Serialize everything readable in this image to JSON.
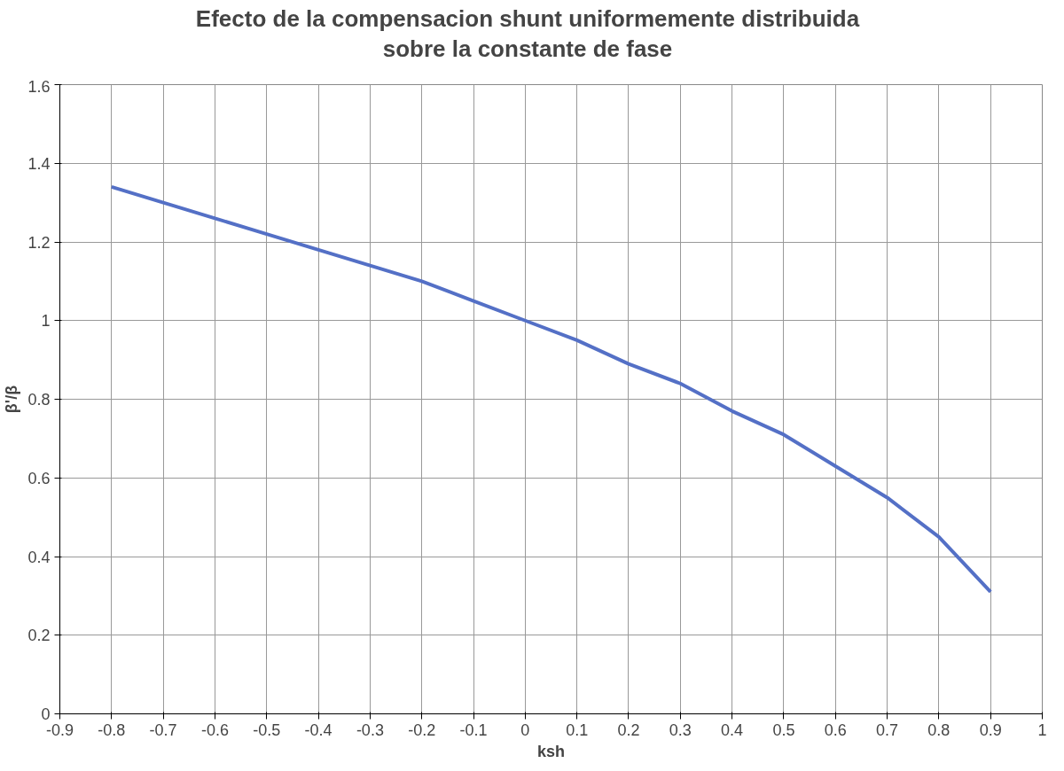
{
  "chart_data": {
    "type": "line",
    "title": "Efecto de la compensacion shunt uniformemente distribuida sobre la constante de fase",
    "xlabel": "ksh",
    "ylabel": "β'/β",
    "x": [
      -0.8,
      -0.7,
      -0.6,
      -0.5,
      -0.4,
      -0.3,
      -0.2,
      -0.1,
      0,
      0.1,
      0.2,
      0.3,
      0.4,
      0.5,
      0.6,
      0.7,
      0.8,
      0.9
    ],
    "series": [
      {
        "color": "#5470c6",
        "values": [
          1.34,
          1.3,
          1.26,
          1.22,
          1.18,
          1.14,
          1.1,
          1.05,
          1.0,
          0.95,
          0.89,
          0.84,
          0.77,
          0.71,
          0.63,
          0.55,
          0.45,
          0.31
        ]
      }
    ],
    "xlim": [
      -0.9,
      1
    ],
    "xticks": [
      -0.9,
      -0.8,
      -0.7,
      -0.6,
      -0.5,
      -0.4,
      -0.3,
      -0.2,
      -0.1,
      0,
      0.1,
      0.2,
      0.3,
      0.4,
      0.5,
      0.6,
      0.7,
      0.8,
      0.9,
      1
    ],
    "ylim": [
      0,
      1.6
    ],
    "yticks": [
      0,
      0.2,
      0.4,
      0.6,
      0.8,
      1,
      1.2,
      1.4,
      1.6
    ],
    "grid": true,
    "marker": "none",
    "line_style": "solid"
  }
}
